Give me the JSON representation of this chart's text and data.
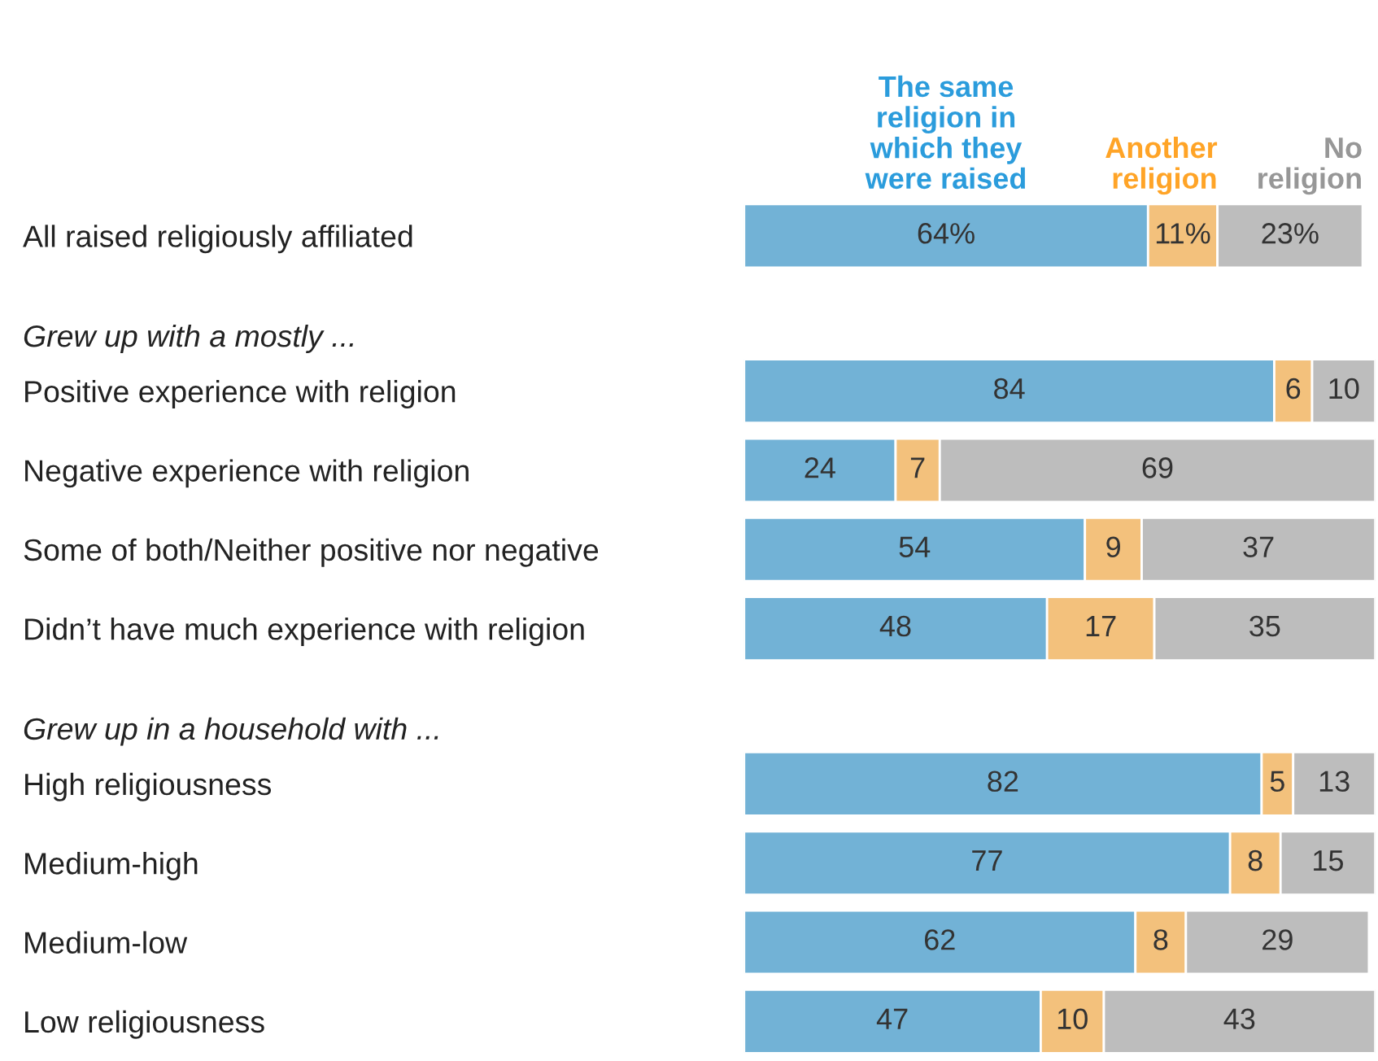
{
  "chart_data": {
    "type": "bar",
    "orientation": "horizontal",
    "stacked": true,
    "categories": [
      "All raised religiously affiliated",
      "Grew up with a mostly ...",
      "Positive experience with religion",
      "Negative experience with religion",
      "Some of both/Neither positive nor negative",
      "Didn’t have much experience with religion",
      "Grew up in a household with ...",
      "High religiousness",
      "Medium-high",
      "Medium-low",
      "Low religiousness"
    ],
    "series": [
      {
        "name": "The same religion in which they were raised",
        "color": "#72b2d6",
        "values": [
          64,
          null,
          84,
          24,
          54,
          48,
          null,
          82,
          77,
          62,
          47
        ],
        "value_labels": [
          "64%",
          null,
          "84",
          "24",
          "54",
          "48",
          null,
          "82",
          "77",
          "62",
          "47"
        ]
      },
      {
        "name": "Another religion",
        "color": "#f3c17c",
        "values": [
          11,
          null,
          6,
          7,
          9,
          17,
          null,
          5,
          8,
          8,
          10
        ],
        "value_labels": [
          "11%",
          null,
          "6",
          "7",
          "9",
          "17",
          null,
          "5",
          "8",
          "8",
          "10"
        ]
      },
      {
        "name": "No religion",
        "color": "#bdbdbd",
        "values": [
          23,
          null,
          10,
          69,
          37,
          35,
          null,
          13,
          15,
          29,
          43
        ],
        "value_labels": [
          "23%",
          null,
          "10",
          "69",
          "37",
          "35",
          null,
          "13",
          "15",
          "29",
          "43"
        ]
      }
    ]
  }
}
